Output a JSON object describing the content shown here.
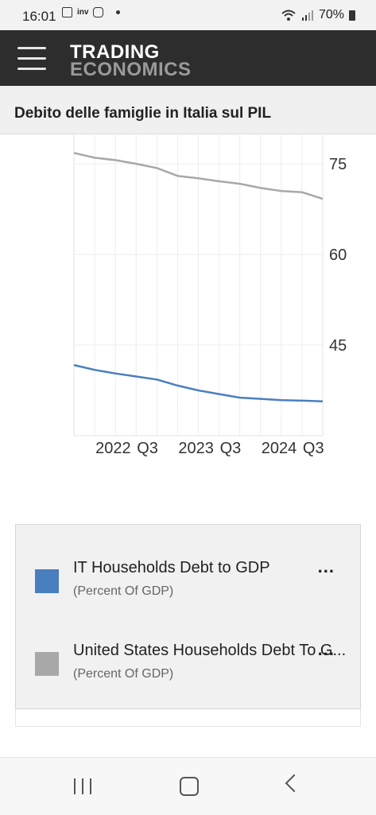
{
  "status_bar": {
    "time": "16:01",
    "battery": "70%",
    "icons": [
      "image-icon",
      "inv-icon",
      "instagram-icon",
      "dot-icon",
      "wifi-icon",
      "signal-icon",
      "battery-icon"
    ]
  },
  "app_bar": {
    "logo_line1": "TRADING",
    "logo_line2": "ECONOMICS",
    "menu_icon": "hamburger-icon"
  },
  "page": {
    "title": "Debito delle famiglie in Italia sul PIL"
  },
  "chart_data": {
    "type": "line",
    "title": "",
    "xlabel": "",
    "ylabel": "",
    "x": [
      "2021-Q4",
      "2022-Q1",
      "2022-Q2",
      "2022-Q3",
      "2022-Q4",
      "2023-Q1",
      "2023-Q2",
      "2023-Q3",
      "2023-Q4",
      "2024-Q1",
      "2024-Q2",
      "2024-Q3",
      "2024-Q4"
    ],
    "x_tick_labels": [
      "2022",
      "Q3",
      "2023",
      "Q3",
      "2024",
      "Q3"
    ],
    "x_tick_positions": [
      "2022-Q1",
      "2022-Q3",
      "2023-Q1",
      "2023-Q3",
      "2024-Q1",
      "2024-Q3"
    ],
    "y_ticks": [
      "75",
      "60",
      "45"
    ],
    "ylim": [
      30,
      80
    ],
    "y_axis_position": "right",
    "grid": true,
    "legend_position": "bottom",
    "series": [
      {
        "name": "IT Households Debt to GDP",
        "unit": "(Percent Of GDP)",
        "color": "#4a7fbf",
        "values": [
          41.7,
          40.9,
          40.3,
          39.8,
          39.3,
          38.3,
          37.5,
          36.9,
          36.3,
          36.1,
          35.9,
          35.8,
          35.7
        ]
      },
      {
        "name": "United States Households Debt To G...",
        "unit": "(Percent Of GDP)",
        "color": "#a8a8a8",
        "values": [
          76.8,
          76.0,
          75.6,
          75.0,
          74.3,
          73.0,
          72.6,
          72.1,
          71.7,
          71.0,
          70.5,
          70.3,
          69.2
        ]
      }
    ]
  },
  "legend": {
    "more_label": "..."
  },
  "nav": {
    "icons": [
      "recents-icon",
      "home-icon",
      "back-icon"
    ]
  }
}
